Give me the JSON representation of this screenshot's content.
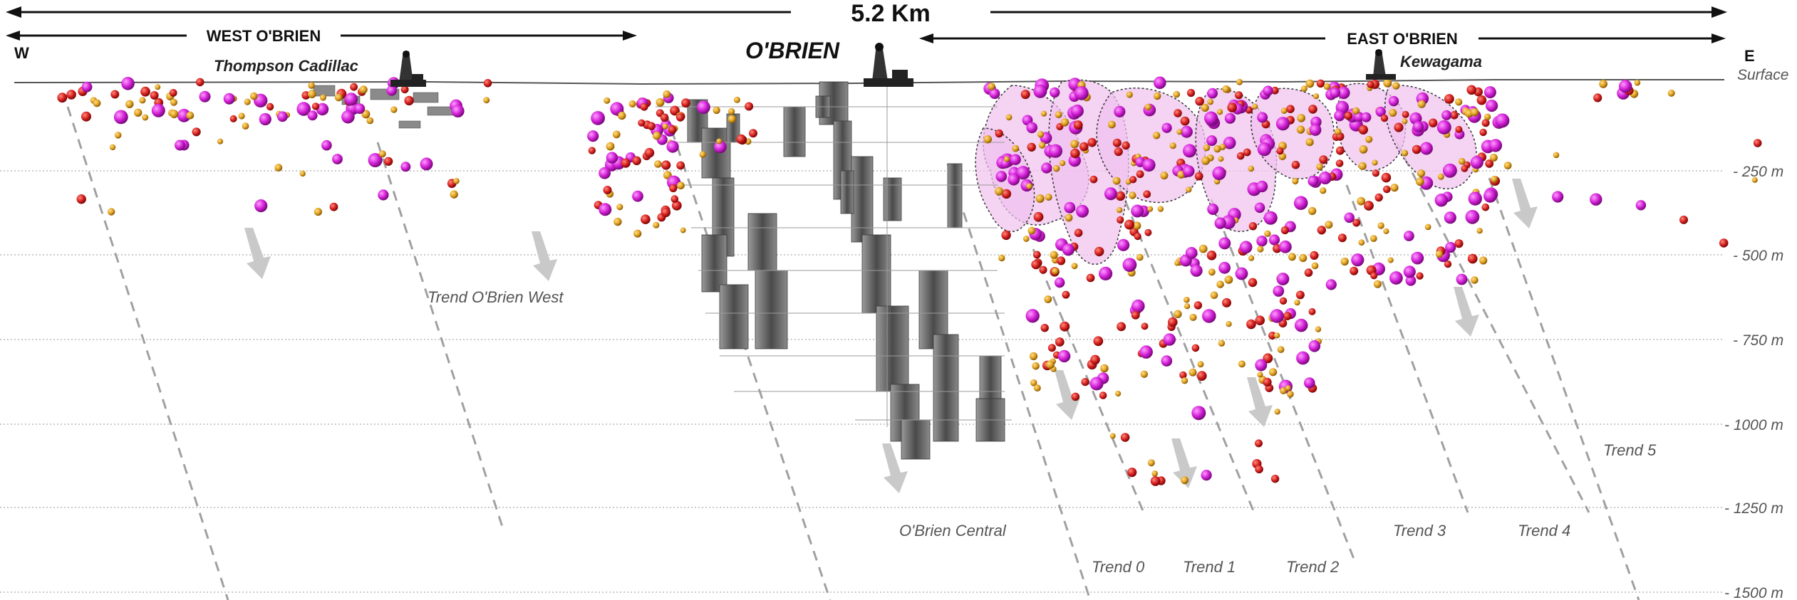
{
  "header": {
    "total_length": "5.2 Km",
    "west_zone": "WEST O'BRIEN",
    "east_zone": "EAST O'BRIEN",
    "center": "O'BRIEN",
    "west_letter": "W",
    "east_letter": "E"
  },
  "mines": {
    "thompson": "Thompson Cadillac",
    "kewagama": "Kewagama"
  },
  "depth_labels": [
    "Surface",
    "- 250 m",
    "- 500 m",
    "- 750 m",
    "- 1000 m",
    "- 1250 m",
    "- 1500 m"
  ],
  "trends": {
    "obrien_west": "Trend O'Brien West",
    "obrien_central": "O'Brien Central",
    "t0": "Trend 0",
    "t1": "Trend 1",
    "t2": "Trend 2",
    "t3": "Trend 3",
    "t4": "Trend 4",
    "t5": "Trend 5"
  },
  "colors": {
    "magenta": "#d21fd6",
    "red": "#d42020",
    "orange": "#e0a020",
    "workings": "#6a6a6a",
    "envelope": "#f0c0ee"
  },
  "icons": [
    "headframe-icon",
    "arrow-icon"
  ]
}
